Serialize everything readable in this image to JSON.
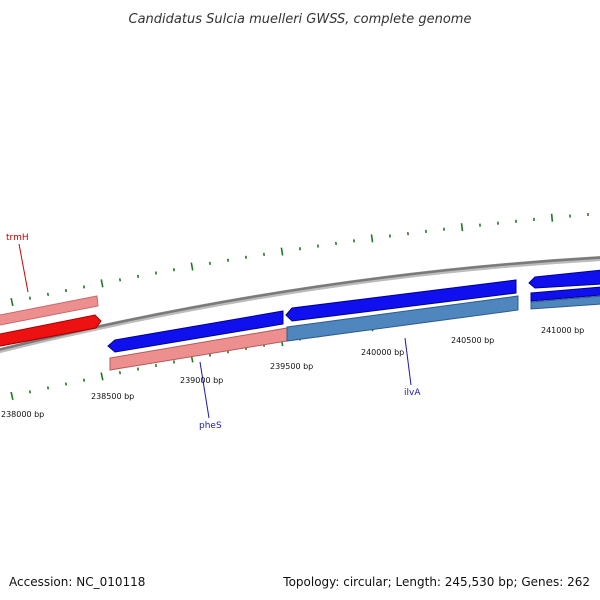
{
  "header": {
    "title": "Candidatus Sulcia muelleri GWSS, complete genome"
  },
  "footer": {
    "accession": "Accession: NC_010118",
    "topology": "Topology: circular; Length: 245,530 bp; Genes: 262"
  },
  "colors": {
    "backbone": "#808080",
    "tick": "#207a20",
    "forward_gene": "#0000ee",
    "reverse_gene": "#ee8888",
    "trmH_gene": "#ee1111",
    "ilvA_gene": "#4f86bd",
    "label_red": "#cc0000",
    "label_blue": "#1a1aaa"
  },
  "position_labels": [
    "238000 bp",
    "238500 bp",
    "239000 bp",
    "239500 bp",
    "240000 bp",
    "240500 bp",
    "241000 bp"
  ],
  "gene_labels": {
    "trmH": "trmH",
    "pheS": "pheS",
    "ilvA": "ilvA"
  }
}
